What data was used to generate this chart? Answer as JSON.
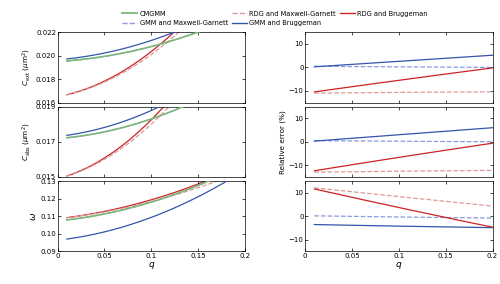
{
  "color_green": "#7cb87a",
  "color_blue_dashed": "#8899dd",
  "color_blue_solid": "#3355aa",
  "color_red_dashed": "#dd9999",
  "color_red_solid": "#cc2222",
  "Cext_ylim": [
    0.016,
    0.022
  ],
  "Cext_yticks": [
    0.016,
    0.018,
    0.02,
    0.022
  ],
  "Cabs_ylim": [
    0.015,
    0.019
  ],
  "Cabs_yticks": [
    0.015,
    0.017,
    0.019
  ],
  "omega_ylim": [
    0.09,
    0.13
  ],
  "omega_yticks": [
    0.09,
    0.1,
    0.11,
    0.12,
    0.13
  ],
  "err_ylim": [
    -15,
    15
  ],
  "err_yticks": [
    -10,
    0,
    10
  ],
  "xlim": [
    0,
    0.2
  ],
  "xticks": [
    0,
    0.05,
    0.1,
    0.15,
    0.2
  ],
  "xtick_labels": [
    "0",
    "0.05",
    "0.1",
    "0.15",
    "0.2"
  ]
}
